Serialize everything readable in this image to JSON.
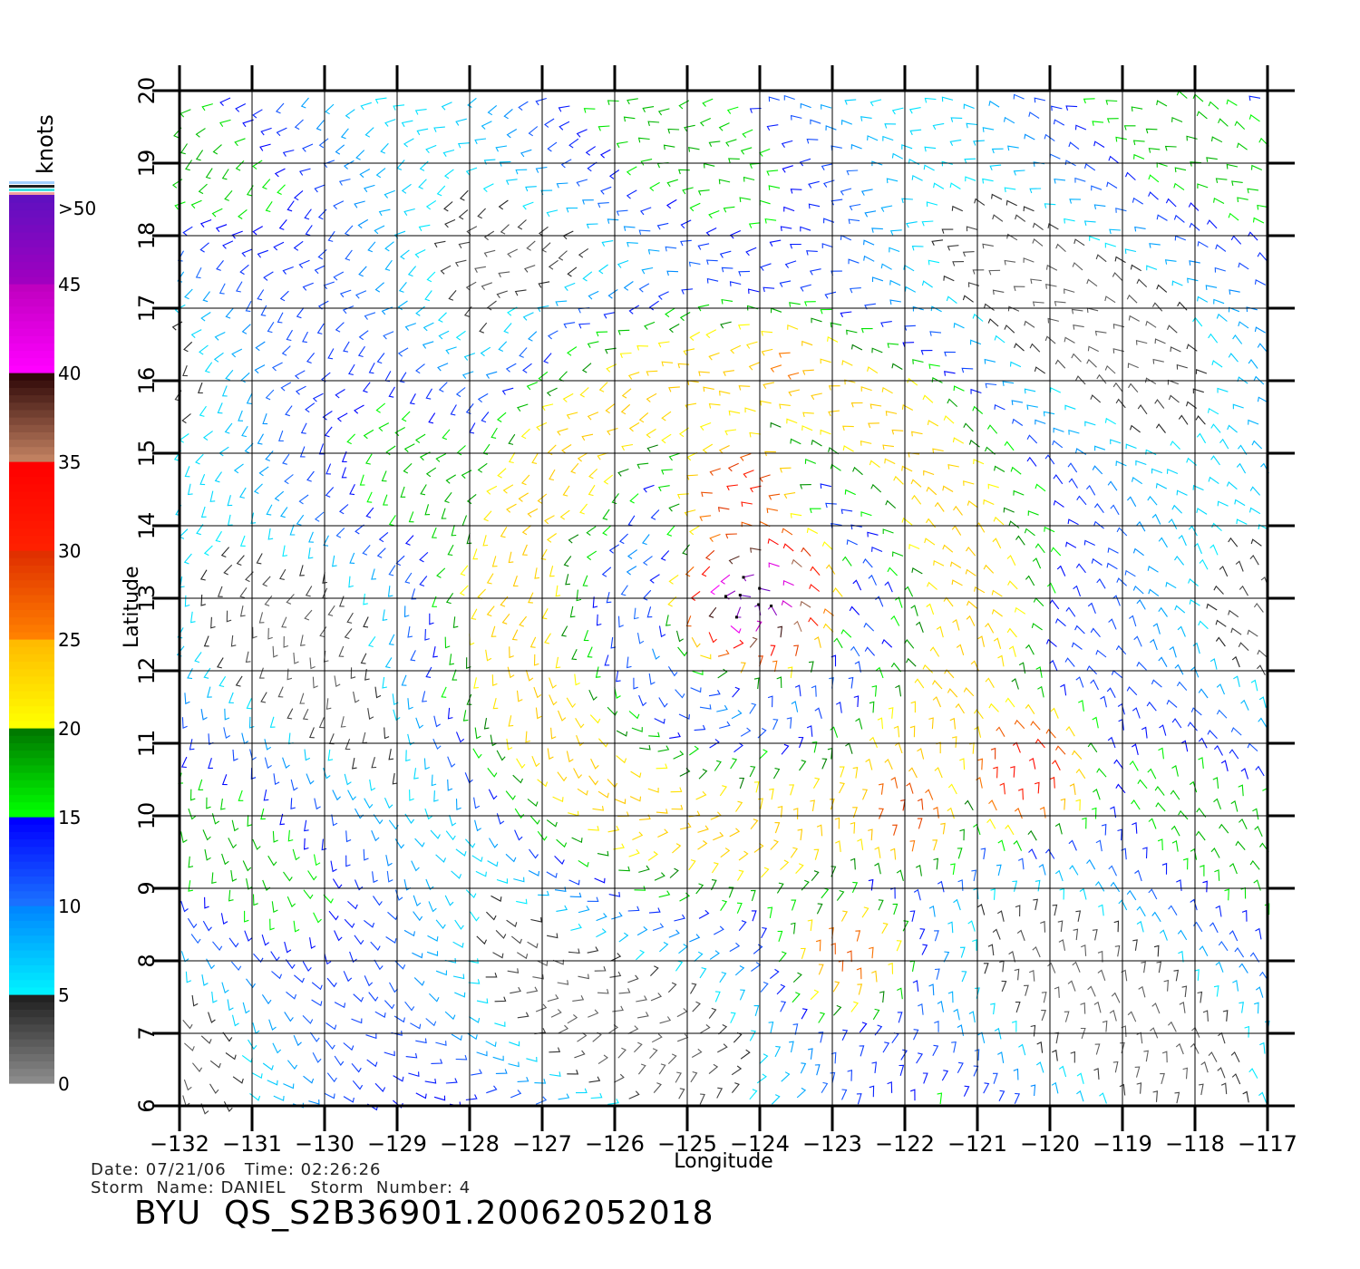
{
  "chart_data": {
    "type": "wind-barb-field",
    "title": "BYU  QS_S2B36901.20062052018",
    "xlabel": "Longitude",
    "ylabel": "Latitude",
    "xlim": [
      -132,
      -117
    ],
    "ylim": [
      6,
      20
    ],
    "x_ticks": [
      -132,
      -131,
      -130,
      -129,
      -128,
      -127,
      -126,
      -125,
      -124,
      -123,
      -122,
      -121,
      -120,
      -119,
      -118,
      -117
    ],
    "y_ticks": [
      6,
      7,
      8,
      9,
      10,
      11,
      12,
      13,
      14,
      15,
      16,
      17,
      18,
      19,
      20
    ],
    "grid": true,
    "colorbar": {
      "label": "knots",
      "position": "left",
      "ticks": [
        "0",
        "5",
        "10",
        "15",
        "20",
        "25",
        "30",
        "35",
        "40",
        "45",
        ">50"
      ],
      "bins": [
        {
          "from": 0,
          "to": 5,
          "color_low": "#8a8a8a",
          "color_high": "#222222"
        },
        {
          "from": 5,
          "to": 10,
          "color_low": "#00f0ff",
          "color_high": "#0088ff"
        },
        {
          "from": 10,
          "to": 15,
          "color_low": "#1a70ff",
          "color_high": "#0000ff"
        },
        {
          "from": 15,
          "to": 20,
          "color_low": "#00ff00",
          "color_high": "#007a00"
        },
        {
          "from": 20,
          "to": 25,
          "color_low": "#ffff00",
          "color_high": "#ffbb00"
        },
        {
          "from": 25,
          "to": 30,
          "color_low": "#ff8000",
          "color_high": "#e03000"
        },
        {
          "from": 30,
          "to": 35,
          "color_low": "#ff2000",
          "color_high": "#ff0000"
        },
        {
          "from": 35,
          "to": 40,
          "color_low": "#c08060",
          "color_high": "#300808"
        },
        {
          "from": 40,
          "to": 45,
          "color_low": "#ff00ff",
          "color_high": "#c000c0"
        },
        {
          "from": 45,
          "to": 50,
          "color_low": "#a000c0",
          "color_high": "#6010c0"
        }
      ]
    },
    "storm_center": {
      "lon": -124.2,
      "lat": 12.9
    },
    "wind_speed_zones": [
      {
        "lon": -124.0,
        "lat": 13.0,
        "max_knots": 50
      },
      {
        "lon": -124.2,
        "lat": 14.5,
        "max_knots": 32
      },
      {
        "lon": -122.0,
        "lat": 10.0,
        "max_knots": 30
      },
      {
        "lon": -120.3,
        "lat": 10.6,
        "max_knots": 34
      },
      {
        "lon": -122.8,
        "lat": 8.0,
        "max_knots": 28
      },
      {
        "lon": -123.5,
        "lat": 16.2,
        "max_knots": 26
      }
    ]
  },
  "footer": {
    "date_time": "Date: 07/21/06   Time: 02:26:26",
    "storm": "Storm  Name: DANIEL    Storm  Number: 4"
  }
}
